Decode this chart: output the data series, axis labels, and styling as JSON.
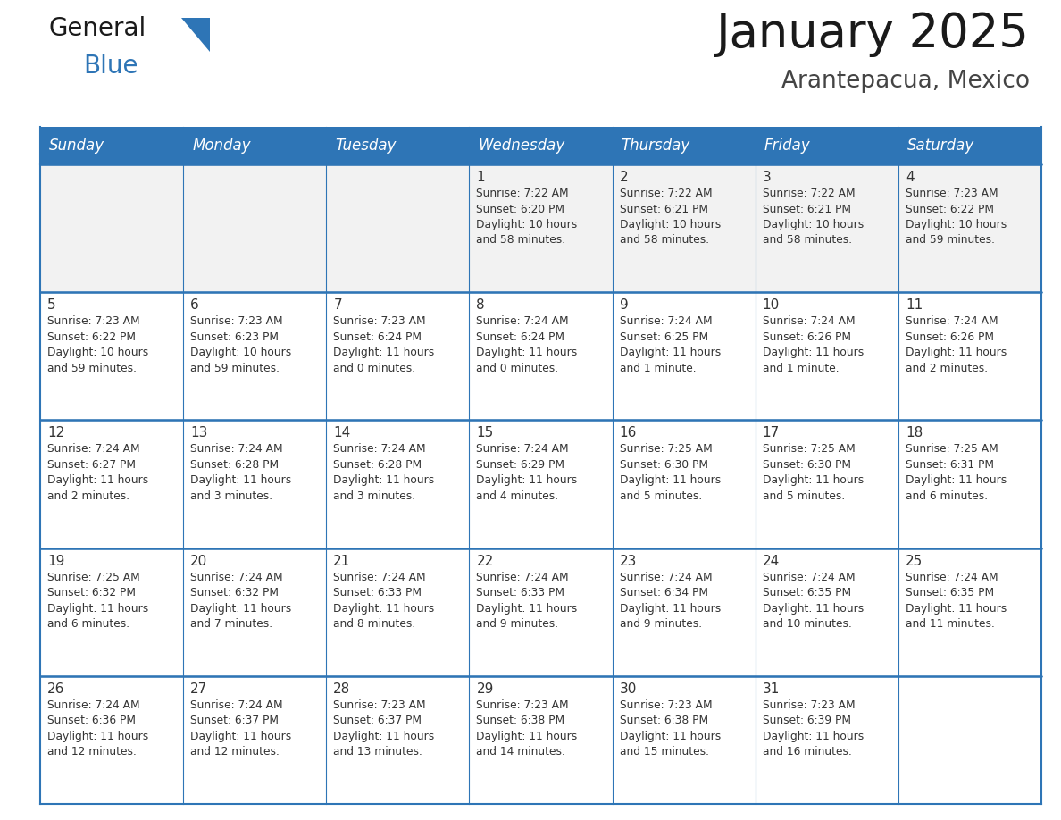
{
  "title": "January 2025",
  "subtitle": "Arantepacua, Mexico",
  "header_color": "#2E75B6",
  "header_text_color": "#FFFFFF",
  "cell_bg_color": "#FFFFFF",
  "cell_alt_bg_color": "#F2F2F2",
  "cell_text_color": "#333333",
  "border_color": "#2E75B6",
  "day_names": [
    "Sunday",
    "Monday",
    "Tuesday",
    "Wednesday",
    "Thursday",
    "Friday",
    "Saturday"
  ],
  "logo_text1": "General",
  "logo_text2": "Blue",
  "logo_color1": "#1a1a1a",
  "logo_color2": "#2E75B6",
  "title_fontsize": 38,
  "subtitle_fontsize": 19,
  "day_header_fontsize": 12,
  "cell_day_fontsize": 11,
  "cell_info_fontsize": 8.8,
  "calendar_data": [
    [
      {
        "day": null,
        "info": ""
      },
      {
        "day": null,
        "info": ""
      },
      {
        "day": null,
        "info": ""
      },
      {
        "day": "1",
        "info": "Sunrise: 7:22 AM\nSunset: 6:20 PM\nDaylight: 10 hours\nand 58 minutes."
      },
      {
        "day": "2",
        "info": "Sunrise: 7:22 AM\nSunset: 6:21 PM\nDaylight: 10 hours\nand 58 minutes."
      },
      {
        "day": "3",
        "info": "Sunrise: 7:22 AM\nSunset: 6:21 PM\nDaylight: 10 hours\nand 58 minutes."
      },
      {
        "day": "4",
        "info": "Sunrise: 7:23 AM\nSunset: 6:22 PM\nDaylight: 10 hours\nand 59 minutes."
      }
    ],
    [
      {
        "day": "5",
        "info": "Sunrise: 7:23 AM\nSunset: 6:22 PM\nDaylight: 10 hours\nand 59 minutes."
      },
      {
        "day": "6",
        "info": "Sunrise: 7:23 AM\nSunset: 6:23 PM\nDaylight: 10 hours\nand 59 minutes."
      },
      {
        "day": "7",
        "info": "Sunrise: 7:23 AM\nSunset: 6:24 PM\nDaylight: 11 hours\nand 0 minutes."
      },
      {
        "day": "8",
        "info": "Sunrise: 7:24 AM\nSunset: 6:24 PM\nDaylight: 11 hours\nand 0 minutes."
      },
      {
        "day": "9",
        "info": "Sunrise: 7:24 AM\nSunset: 6:25 PM\nDaylight: 11 hours\nand 1 minute."
      },
      {
        "day": "10",
        "info": "Sunrise: 7:24 AM\nSunset: 6:26 PM\nDaylight: 11 hours\nand 1 minute."
      },
      {
        "day": "11",
        "info": "Sunrise: 7:24 AM\nSunset: 6:26 PM\nDaylight: 11 hours\nand 2 minutes."
      }
    ],
    [
      {
        "day": "12",
        "info": "Sunrise: 7:24 AM\nSunset: 6:27 PM\nDaylight: 11 hours\nand 2 minutes."
      },
      {
        "day": "13",
        "info": "Sunrise: 7:24 AM\nSunset: 6:28 PM\nDaylight: 11 hours\nand 3 minutes."
      },
      {
        "day": "14",
        "info": "Sunrise: 7:24 AM\nSunset: 6:28 PM\nDaylight: 11 hours\nand 3 minutes."
      },
      {
        "day": "15",
        "info": "Sunrise: 7:24 AM\nSunset: 6:29 PM\nDaylight: 11 hours\nand 4 minutes."
      },
      {
        "day": "16",
        "info": "Sunrise: 7:25 AM\nSunset: 6:30 PM\nDaylight: 11 hours\nand 5 minutes."
      },
      {
        "day": "17",
        "info": "Sunrise: 7:25 AM\nSunset: 6:30 PM\nDaylight: 11 hours\nand 5 minutes."
      },
      {
        "day": "18",
        "info": "Sunrise: 7:25 AM\nSunset: 6:31 PM\nDaylight: 11 hours\nand 6 minutes."
      }
    ],
    [
      {
        "day": "19",
        "info": "Sunrise: 7:25 AM\nSunset: 6:32 PM\nDaylight: 11 hours\nand 6 minutes."
      },
      {
        "day": "20",
        "info": "Sunrise: 7:24 AM\nSunset: 6:32 PM\nDaylight: 11 hours\nand 7 minutes."
      },
      {
        "day": "21",
        "info": "Sunrise: 7:24 AM\nSunset: 6:33 PM\nDaylight: 11 hours\nand 8 minutes."
      },
      {
        "day": "22",
        "info": "Sunrise: 7:24 AM\nSunset: 6:33 PM\nDaylight: 11 hours\nand 9 minutes."
      },
      {
        "day": "23",
        "info": "Sunrise: 7:24 AM\nSunset: 6:34 PM\nDaylight: 11 hours\nand 9 minutes."
      },
      {
        "day": "24",
        "info": "Sunrise: 7:24 AM\nSunset: 6:35 PM\nDaylight: 11 hours\nand 10 minutes."
      },
      {
        "day": "25",
        "info": "Sunrise: 7:24 AM\nSunset: 6:35 PM\nDaylight: 11 hours\nand 11 minutes."
      }
    ],
    [
      {
        "day": "26",
        "info": "Sunrise: 7:24 AM\nSunset: 6:36 PM\nDaylight: 11 hours\nand 12 minutes."
      },
      {
        "day": "27",
        "info": "Sunrise: 7:24 AM\nSunset: 6:37 PM\nDaylight: 11 hours\nand 12 minutes."
      },
      {
        "day": "28",
        "info": "Sunrise: 7:23 AM\nSunset: 6:37 PM\nDaylight: 11 hours\nand 13 minutes."
      },
      {
        "day": "29",
        "info": "Sunrise: 7:23 AM\nSunset: 6:38 PM\nDaylight: 11 hours\nand 14 minutes."
      },
      {
        "day": "30",
        "info": "Sunrise: 7:23 AM\nSunset: 6:38 PM\nDaylight: 11 hours\nand 15 minutes."
      },
      {
        "day": "31",
        "info": "Sunrise: 7:23 AM\nSunset: 6:39 PM\nDaylight: 11 hours\nand 16 minutes."
      },
      {
        "day": null,
        "info": ""
      }
    ]
  ]
}
